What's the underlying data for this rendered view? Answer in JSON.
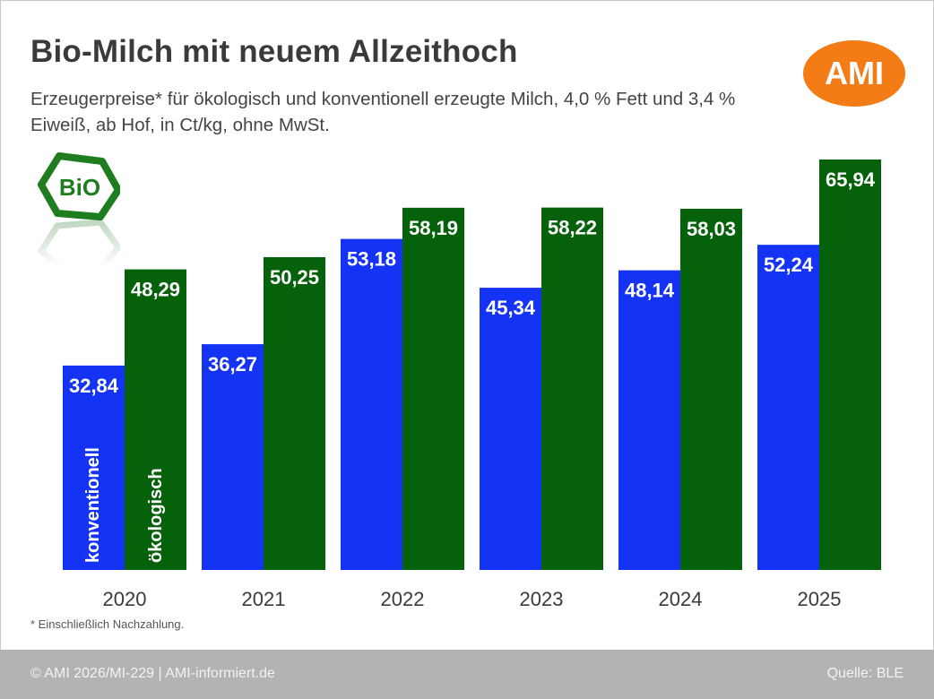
{
  "header": {
    "title": "Bio-Milch mit neuem Allzeithoch",
    "subtitle": "Erzeugerpreise* für ökologisch und konventionell erzeugte Milch, 4,0 % Fett und 3,4 % Eiweiß, ab Hof, in Ct/kg, ohne MwSt.",
    "logo_text": "AMI",
    "bio_badge_text": "BiO"
  },
  "colors": {
    "konventionell": "#1433f5",
    "oekologisch": "#05620a",
    "logo": "#f47c17",
    "footer": "#b3b3b3"
  },
  "chart_data": {
    "type": "bar",
    "title": "Bio-Milch mit neuem Allzeithoch",
    "xlabel": "",
    "ylabel": "Ct/kg",
    "categories": [
      "2020",
      "2021",
      "2022",
      "2023",
      "2024",
      "2025"
    ],
    "series": [
      {
        "name": "konventionell",
        "values": [
          32.84,
          36.27,
          53.18,
          45.34,
          48.14,
          52.24
        ],
        "labels": [
          "32,84",
          "36,27",
          "53,18",
          "45,34",
          "48,14",
          "52,24"
        ]
      },
      {
        "name": "ökologisch",
        "values": [
          48.29,
          50.25,
          58.19,
          58.22,
          58.03,
          65.94
        ],
        "labels": [
          "48,29",
          "50,25",
          "58,19",
          "58,22",
          "58,03",
          "65,94"
        ]
      }
    ],
    "ylim": [
      0,
      70
    ],
    "grid": false,
    "legend": "inside-first-bars-vertical"
  },
  "footnote": "* Einschließlich Nachzahlung.",
  "footer": {
    "left": "© AMI 2026/MI-229 | AMI-informiert.de",
    "right": "Quelle:  BLE"
  }
}
